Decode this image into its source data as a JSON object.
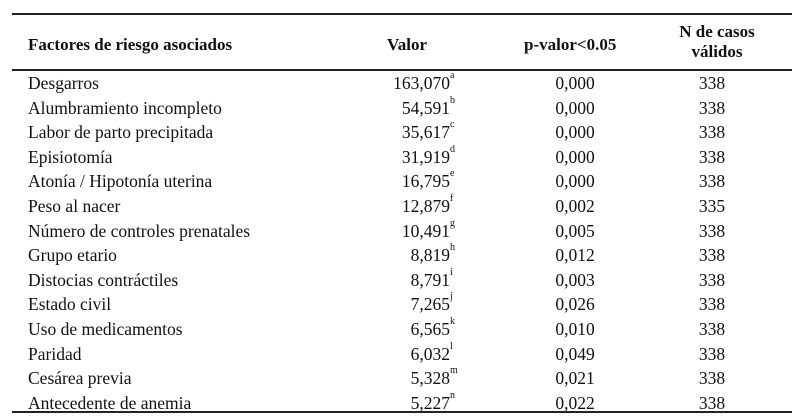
{
  "table": {
    "headers": [
      "Factores de riesgo asociados",
      "Valor",
      "p-valor<0.05",
      "N de casos",
      "válidos"
    ],
    "rows": [
      {
        "factor": "Desgarros",
        "valor": "163,070",
        "sup": "a",
        "p": "0,000",
        "n": "338"
      },
      {
        "factor": "Alumbramiento incompleto",
        "valor": "54,591",
        "sup": "b",
        "p": "0,000",
        "n": "338"
      },
      {
        "factor": "Labor de parto precipitada",
        "valor": "35,617",
        "sup": "c",
        "p": "0,000",
        "n": "338"
      },
      {
        "factor": "Episiotomía",
        "valor": "31,919",
        "sup": "d",
        "p": "0,000",
        "n": "338"
      },
      {
        "factor": "Atonía / Hipotonía uterina",
        "valor": "16,795",
        "sup": "e",
        "p": "0,000",
        "n": "338"
      },
      {
        "factor": "Peso al nacer",
        "valor": "12,879",
        "sup": "f",
        "p": "0,002",
        "n": "335"
      },
      {
        "factor": "Número de controles prenatales",
        "valor": "10,491",
        "sup": "g",
        "p": "0,005",
        "n": "338"
      },
      {
        "factor": "Grupo etario",
        "valor": "8,819",
        "sup": "h",
        "p": "0,012",
        "n": "338"
      },
      {
        "factor": "Distocias contráctiles",
        "valor": "8,791",
        "sup": "i",
        "p": "0,003",
        "n": "338"
      },
      {
        "factor": "Estado civil",
        "valor": "7,265",
        "sup": "j",
        "p": "0,026",
        "n": "338"
      },
      {
        "factor": "Uso de medicamentos",
        "valor": "6,565",
        "sup": "k",
        "p": "0,010",
        "n": "338"
      },
      {
        "factor": "Paridad",
        "valor": "6,032",
        "sup": "l",
        "p": "0,049",
        "n": "338"
      },
      {
        "factor": "Cesárea previa",
        "valor": "5,328",
        "sup": "m",
        "p": "0,021",
        "n": "338"
      },
      {
        "factor": "Antecedente de anemia",
        "valor": "5,227",
        "sup": "n",
        "p": "0,022",
        "n": "338"
      }
    ]
  }
}
